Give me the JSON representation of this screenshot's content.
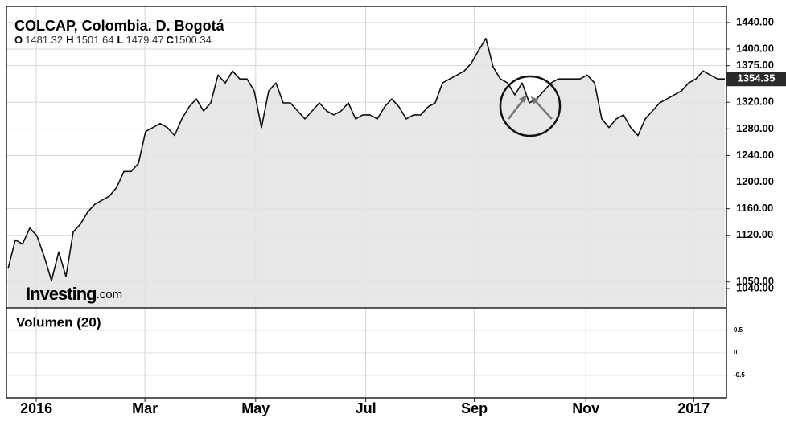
{
  "chart_data": {
    "type": "line",
    "title": "COLCAP, Colombia. D. Bogotá",
    "ohlc": [
      {
        "key": "O",
        "text": "1481.32"
      },
      {
        "key": "H",
        "text": "1501.64"
      },
      {
        "key": "L",
        "text": "1479.47"
      },
      {
        "key": "C",
        "text": "1500.34"
      }
    ],
    "last_price": "1354.35",
    "logo": {
      "brand": "Investing",
      "suffix": ".com"
    },
    "volume_title": "Volumen (20)",
    "color": "#111111",
    "fill": "#e3e3e3",
    "grid": true,
    "values": [
      1070,
      1113,
      1107,
      1131,
      1119,
      1088,
      1052,
      1095,
      1058,
      1125,
      1137,
      1155,
      1167,
      1173,
      1179,
      1192,
      1216,
      1216,
      1228,
      1276,
      1282,
      1288,
      1282,
      1270,
      1295,
      1313,
      1325,
      1307,
      1319,
      1361,
      1349,
      1367,
      1355,
      1355,
      1337,
      1282,
      1337,
      1349,
      1319,
      1319,
      1307,
      1295,
      1307,
      1319,
      1307,
      1301,
      1307,
      1319,
      1295,
      1301,
      1301,
      1295,
      1313,
      1325,
      1313,
      1295,
      1301,
      1301,
      1313,
      1319,
      1349,
      1355,
      1361,
      1367,
      1379,
      1398,
      1416,
      1373,
      1355,
      1349,
      1331,
      1349,
      1319,
      1325,
      1337,
      1349,
      1355,
      1355,
      1355,
      1355,
      1361,
      1349,
      1295,
      1282,
      1295,
      1301,
      1282,
      1270,
      1295,
      1307,
      1319,
      1325,
      1331,
      1337,
      1349,
      1355,
      1367,
      1361,
      1355,
      1355
    ],
    "xlim": [
      0,
      99
    ],
    "xticks": [
      {
        "value": 3.9,
        "label": "2016"
      },
      {
        "value": 18.9,
        "label": "Mar"
      },
      {
        "value": 34.2,
        "label": "May"
      },
      {
        "value": 49.4,
        "label": "Jul"
      },
      {
        "value": 64.4,
        "label": "Sep"
      },
      {
        "value": 79.8,
        "label": "Nov"
      },
      {
        "value": 94.7,
        "label": "2017"
      }
    ],
    "ylim": [
      1011,
      1464
    ],
    "yticks": [
      {
        "value": 1040,
        "label": "1040.00"
      },
      {
        "value": 1050,
        "label": "1050.00"
      },
      {
        "value": 1120,
        "label": "1120.00"
      },
      {
        "value": 1160,
        "label": "1160.00"
      },
      {
        "value": 1200,
        "label": "1200.00"
      },
      {
        "value": 1240,
        "label": "1240.00"
      },
      {
        "value": 1280,
        "label": "1280.00"
      },
      {
        "value": 1320,
        "label": "1320.00"
      },
      {
        "value": 1375,
        "label": "1375.00"
      },
      {
        "value": 1400,
        "label": "1400.00"
      },
      {
        "value": 1440,
        "label": "1440.00"
      }
    ],
    "y2lim": [
      -1,
      1
    ],
    "y2ticks": [
      -0.5,
      0,
      0.5
    ]
  }
}
